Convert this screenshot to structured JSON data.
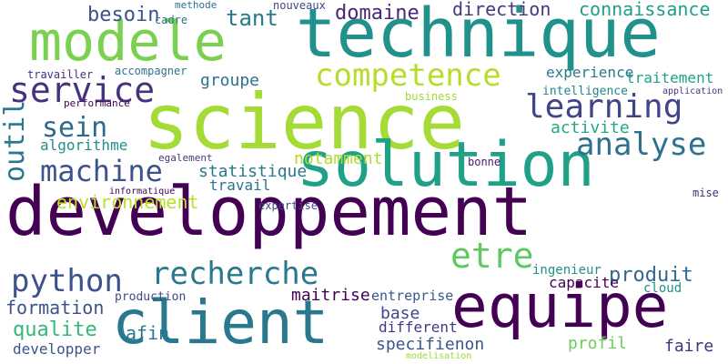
{
  "words": [
    {
      "text": "developpement",
      "color": "#440154",
      "vertical": false
    },
    {
      "text": "science",
      "color": "#a5db36",
      "vertical": false
    },
    {
      "text": "technique",
      "color": "#21918c",
      "vertical": false
    },
    {
      "text": "modele",
      "color": "#7ad151",
      "vertical": false
    },
    {
      "text": "solution",
      "color": "#1fa187",
      "vertical": false
    },
    {
      "text": "equipe",
      "color": "#440154",
      "vertical": false
    },
    {
      "text": "client",
      "color": "#2a788e",
      "vertical": false
    },
    {
      "text": "competence",
      "color": "#b5de2b",
      "vertical": false
    },
    {
      "text": "service",
      "color": "#46327e",
      "vertical": false
    },
    {
      "text": "learning",
      "color": "#414487",
      "vertical": false
    },
    {
      "text": "machine",
      "color": "#3b528b",
      "vertical": false
    },
    {
      "text": "analyse",
      "color": "#2c728e",
      "vertical": false
    },
    {
      "text": "python",
      "color": "#3b528b",
      "vertical": false
    },
    {
      "text": "recherche",
      "color": "#2a788e",
      "vertical": false
    },
    {
      "text": "etre",
      "color": "#5ec962",
      "vertical": false
    },
    {
      "text": "outil",
      "color": "#2a788e",
      "vertical": true
    },
    {
      "text": "sein",
      "color": "#31688e",
      "vertical": false
    },
    {
      "text": "besoin",
      "color": "#3b528b",
      "vertical": false
    },
    {
      "text": "tant",
      "color": "#2a788e",
      "vertical": false
    },
    {
      "text": "domaine",
      "color": "#482878",
      "vertical": false
    },
    {
      "text": "direction",
      "color": "#453781",
      "vertical": false
    },
    {
      "text": "connaissance",
      "color": "#1f9e89",
      "vertical": false
    },
    {
      "text": "nouveaux",
      "color": "#414487",
      "vertical": false
    },
    {
      "text": "algorithme",
      "color": "#21918c",
      "vertical": false
    },
    {
      "text": "statistique",
      "color": "#2a788e",
      "vertical": false
    },
    {
      "text": "environnement",
      "color": "#bddf26",
      "vertical": false
    },
    {
      "text": "activite",
      "color": "#22a884",
      "vertical": false
    },
    {
      "text": "notamment",
      "color": "#addc30",
      "vertical": false
    },
    {
      "text": "produit",
      "color": "#31688e",
      "vertical": false
    },
    {
      "text": "formation",
      "color": "#3b528b",
      "vertical": false
    },
    {
      "text": "maitrise",
      "color": "#440154",
      "vertical": false
    },
    {
      "text": "qualite",
      "color": "#35b779",
      "vertical": false
    },
    {
      "text": "afin",
      "color": "#2a788e",
      "vertical": false
    },
    {
      "text": "specifienon",
      "color": "#39568c",
      "vertical": false
    },
    {
      "text": "developper",
      "color": "#3b528b",
      "vertical": false
    },
    {
      "text": "profil",
      "color": "#6ccd5a",
      "vertical": false
    },
    {
      "text": "faire",
      "color": "#46327e",
      "vertical": false
    },
    {
      "text": "base",
      "color": "#3e4989",
      "vertical": false
    },
    {
      "text": "different",
      "color": "#443983",
      "vertical": false
    },
    {
      "text": "capacite",
      "color": "#440154",
      "vertical": false
    },
    {
      "text": "groupe",
      "color": "#2c728e",
      "vertical": false
    },
    {
      "text": "travail",
      "color": "#2c728e",
      "vertical": false
    },
    {
      "text": "experience",
      "color": "#2a788e",
      "vertical": false
    },
    {
      "text": "traitement",
      "color": "#1fa187",
      "vertical": false
    },
    {
      "text": "intelligence",
      "color": "#25858e",
      "vertical": false
    },
    {
      "text": "entreprise",
      "color": "#38598c",
      "vertical": false
    },
    {
      "text": "production",
      "color": "#3e4989",
      "vertical": false
    },
    {
      "text": "ingenieur",
      "color": "#21918c",
      "vertical": false
    },
    {
      "text": "cloud",
      "color": "#21918c",
      "vertical": false
    },
    {
      "text": "mise",
      "color": "#472d7b",
      "vertical": false
    },
    {
      "text": "accompagner",
      "color": "#2c728e",
      "vertical": false
    },
    {
      "text": "travailler",
      "color": "#46307e",
      "vertical": false
    },
    {
      "text": "cadre",
      "color": "#2c728e",
      "vertical": false
    },
    {
      "text": "methode",
      "color": "#2c728e",
      "vertical": false
    },
    {
      "text": "expertise",
      "color": "#3e4989",
      "vertical": false
    },
    {
      "text": "egalement",
      "color": "#443a83",
      "vertical": false
    },
    {
      "text": "bonne",
      "color": "#481a6c",
      "vertical": false
    },
    {
      "text": "business",
      "color": "#9fda3a",
      "vertical": false
    },
    {
      "text": "performance",
      "color": "#440154",
      "vertical": false
    },
    {
      "text": "modelisation",
      "color": "#a0da39",
      "vertical": false
    },
    {
      "text": "application",
      "color": "#46337f",
      "vertical": false
    },
    {
      "text": "informatique",
      "color": "#440154",
      "vertical": false
    }
  ]
}
